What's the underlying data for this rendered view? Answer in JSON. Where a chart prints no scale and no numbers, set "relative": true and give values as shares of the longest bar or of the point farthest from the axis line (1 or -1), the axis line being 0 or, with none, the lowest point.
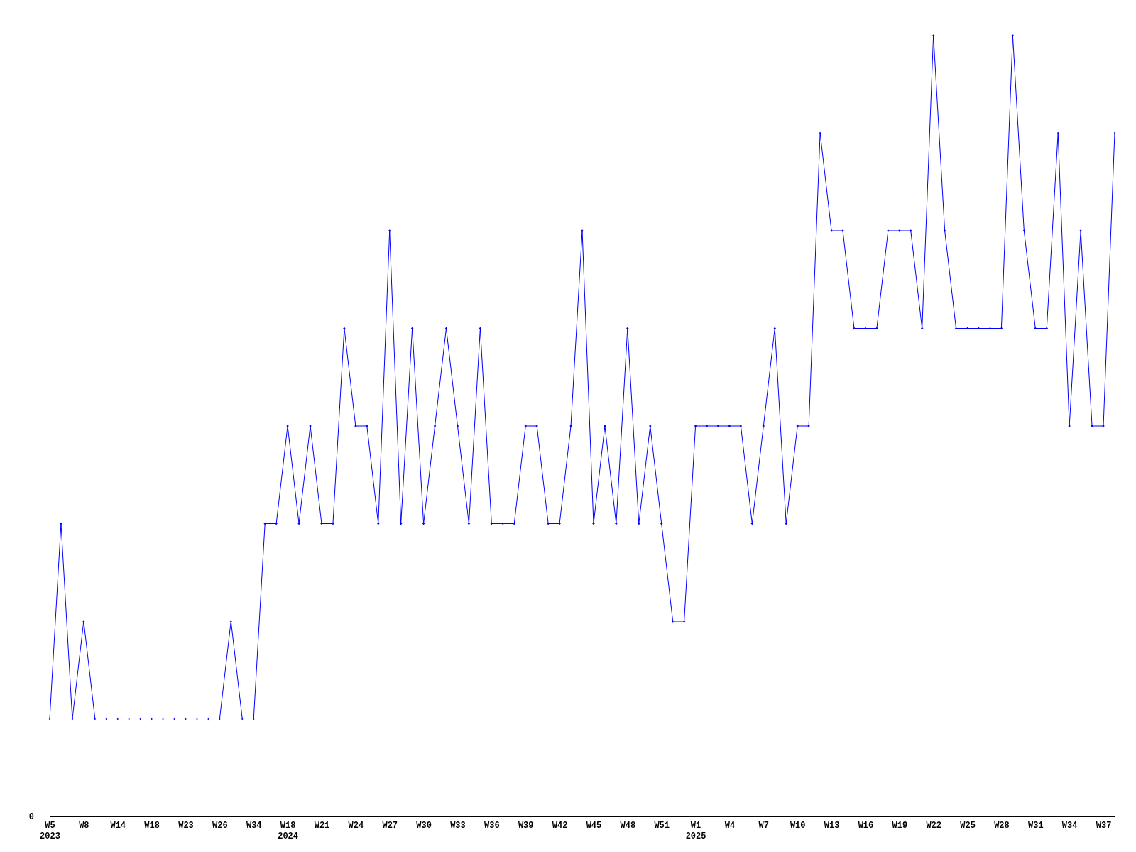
{
  "chart_data": {
    "type": "line",
    "relative": true,
    "marker": "diamond",
    "color": "#0000ff",
    "categories": [
      "W5\n2023",
      null,
      null,
      "W8",
      null,
      null,
      "W14",
      null,
      null,
      "W18",
      null,
      null,
      "W23",
      null,
      null,
      "W26",
      null,
      null,
      "W34",
      null,
      null,
      "W18\n2024",
      null,
      null,
      "W21",
      null,
      null,
      "W24",
      null,
      null,
      "W27",
      null,
      null,
      "W30",
      null,
      null,
      "W33",
      null,
      null,
      "W36",
      null,
      null,
      "W39",
      null,
      null,
      "W42",
      null,
      null,
      "W45",
      null,
      null,
      "W48",
      null,
      null,
      "W51",
      null,
      null,
      "W1\n2025",
      null,
      null,
      "W4",
      null,
      null,
      "W7",
      null,
      null,
      "W10",
      null,
      null,
      "W13",
      null,
      null,
      "W16",
      null,
      null,
      "W19",
      null,
      null,
      "W22",
      null,
      null,
      "W25",
      null,
      null,
      "W28",
      null,
      null,
      "W31",
      null,
      null,
      "W34",
      null,
      null,
      "W37",
      null
    ],
    "values": [
      0.125,
      0.375,
      0.125,
      0.25,
      0.125,
      0.125,
      0.125,
      0.125,
      0.125,
      0.125,
      0.125,
      0.125,
      0.125,
      0.125,
      0.125,
      0.125,
      0.25,
      0.125,
      0.125,
      0.375,
      0.375,
      0.5,
      0.375,
      0.5,
      0.375,
      0.375,
      0.625,
      0.5,
      0.5,
      0.375,
      0.75,
      0.375,
      0.625,
      0.375,
      0.5,
      0.625,
      0.5,
      0.375,
      0.625,
      0.375,
      0.375,
      0.375,
      0.5,
      0.5,
      0.375,
      0.375,
      0.5,
      0.75,
      0.375,
      0.5,
      0.375,
      0.625,
      0.375,
      0.5,
      0.375,
      0.25,
      0.25,
      0.5,
      0.5,
      0.5,
      0.5,
      0.5,
      0.375,
      0.5,
      0.625,
      0.375,
      0.5,
      0.5,
      0.875,
      0.75,
      0.75,
      0.625,
      0.625,
      0.625,
      0.75,
      0.75,
      0.75,
      0.625,
      1,
      0.75,
      0.625,
      0.625,
      0.625,
      0.625,
      0.625,
      1,
      0.75,
      0.625,
      0.625,
      0.875,
      0.5,
      0.75,
      0.5,
      0.5,
      0.875
    ],
    "annotations": [
      "0"
    ]
  }
}
